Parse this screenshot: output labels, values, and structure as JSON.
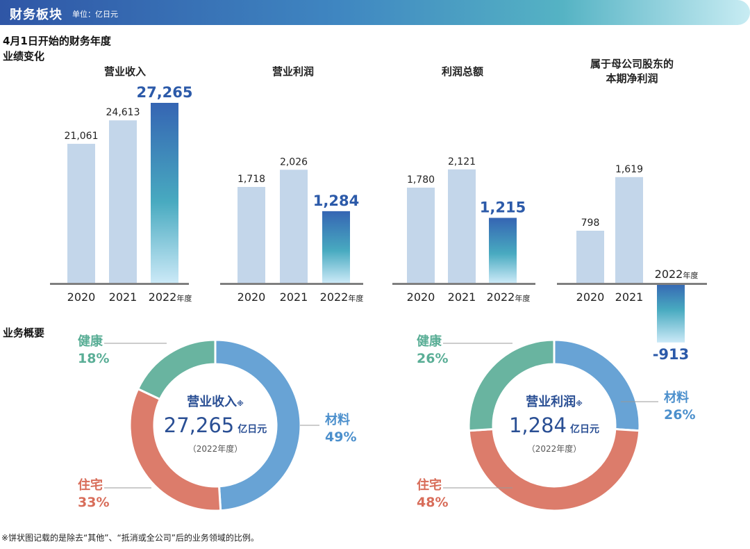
{
  "header": {
    "title": "财务板块",
    "unit": "单位：亿日元"
  },
  "performance": {
    "fiscal_note": "4月1日开始的财务年度",
    "section_title": "业绩变化",
    "year_suffix": "年度"
  },
  "overview": {
    "section_title": "业务概要"
  },
  "colors": {
    "bar_past": "#c3d6ea",
    "bar_grad_top": "#3565b3",
    "bar_grad_mid": "#48aac0",
    "bar_grad_bottom": "#cbe9f7",
    "value_2022": "#2c5aa9",
    "baseline": "#7f7f7f",
    "materials": "#68a3d5",
    "housing": "#dc7c6b",
    "health": "#69b4a0"
  },
  "chart_data": [
    {
      "type": "bar",
      "title": "营业收入",
      "categories": [
        "2020",
        "2021",
        "2022"
      ],
      "values": [
        21061,
        24613,
        27265
      ],
      "value_labels": [
        "21,061",
        "24,613",
        "27,265"
      ]
    },
    {
      "type": "bar",
      "title": "营业利润",
      "categories": [
        "2020",
        "2021",
        "2022"
      ],
      "values": [
        1718,
        2026,
        1284
      ],
      "value_labels": [
        "1,718",
        "2,026",
        "1,284"
      ]
    },
    {
      "type": "bar",
      "title": "利润总额",
      "categories": [
        "2020",
        "2021",
        "2022"
      ],
      "values": [
        1780,
        2121,
        1215
      ],
      "value_labels": [
        "1,780",
        "2,121",
        "1,215"
      ]
    },
    {
      "type": "bar",
      "title": "属于母公司股东的本期净利润",
      "title_lines": [
        "属于母公司股东的",
        "本期净利润"
      ],
      "categories": [
        "2020",
        "2021",
        "2022"
      ],
      "values": [
        798,
        1619,
        -913
      ],
      "value_labels": [
        "798",
        "1,619",
        "-913"
      ]
    },
    {
      "type": "pie",
      "center_title": "营业收入",
      "center_mark": "※",
      "center_value": "27,265",
      "center_unit": "亿日元",
      "center_year": "（2022年度）",
      "slices": [
        {
          "name": "材料",
          "percent": 49,
          "label": "49%"
        },
        {
          "name": "住宅",
          "percent": 33,
          "label": "33%"
        },
        {
          "name": "健康",
          "percent": 18,
          "label": "18%"
        }
      ]
    },
    {
      "type": "pie",
      "center_title": "营业利润",
      "center_mark": "※",
      "center_value": "1,284",
      "center_unit": "亿日元",
      "center_year": "（2022年度）",
      "slices": [
        {
          "name": "材料",
          "percent": 26,
          "label": "26%"
        },
        {
          "name": "住宅",
          "percent": 48,
          "label": "48%"
        },
        {
          "name": "健康",
          "percent": 26,
          "label": "26%"
        }
      ]
    }
  ],
  "footnote": "※饼状图记载的是除去“其他”、“抵消或全公司”后的业务领域的比例。"
}
